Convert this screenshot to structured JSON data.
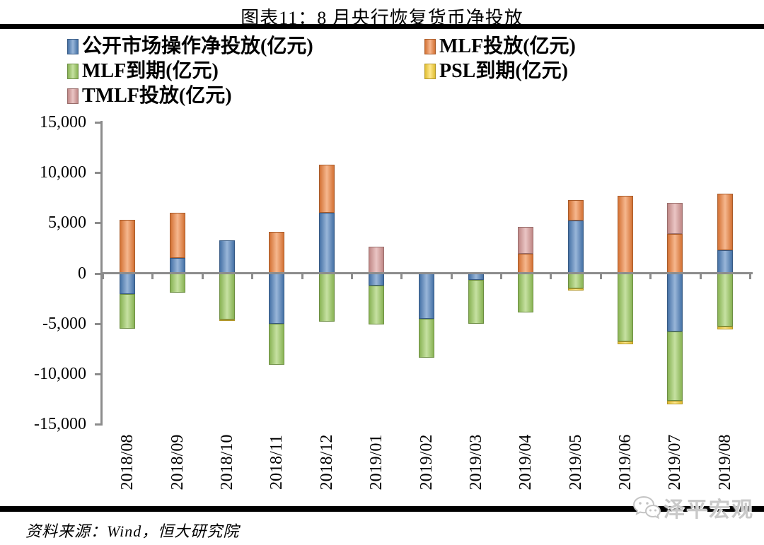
{
  "title": "图表11：8 月央行恢复货币净投放",
  "source": "资料来源：Wind，恒大研究院",
  "watermark": "泽平宏观",
  "colors": {
    "omo_blue": "#4F81BD",
    "mlf_inject_orange": "#F0823C",
    "mlf_mature_green": "#9CCB5F",
    "psl_mature_yellow": "#FFD83A",
    "tmlf_inject_pink": "#DA9B99",
    "axis_gray": "#8C8C8C",
    "rule_black": "#000000",
    "watermark_gray": "#C9C9C9"
  },
  "legend": [
    {
      "label": "公开市场操作净投放(亿元)",
      "color": "#4F81BD"
    },
    {
      "label": "MLF投放(亿元)",
      "color": "#F0823C"
    },
    {
      "label": "MLF到期(亿元)",
      "color": "#9CCB5F"
    },
    {
      "label": "PSL到期(亿元)",
      "color": "#FFD83A"
    },
    {
      "label": "TMLF投放(亿元)",
      "color": "#DA9B99"
    }
  ],
  "chart_data": {
    "type": "bar",
    "stacked": true,
    "grid": false,
    "legend_position": "top-left",
    "title": "图表11：8 月央行恢复货币净投放",
    "xlabel": "",
    "ylabel": "亿元",
    "ylim": [
      -15000,
      15000
    ],
    "yticks": [
      {
        "label": "15,000",
        "value": 15000
      },
      {
        "label": "10,000",
        "value": 10000
      },
      {
        "label": "5,000",
        "value": 5000
      },
      {
        "label": "0",
        "value": 0
      },
      {
        "label": "-5,000",
        "value": -5000
      },
      {
        "label": "-10,000",
        "value": -10000
      },
      {
        "label": "-15,000",
        "value": -15000
      }
    ],
    "categories": [
      "2018/08",
      "2018/09",
      "2018/10",
      "2018/11",
      "2018/12",
      "2019/01",
      "2019/02",
      "2019/03",
      "2019/04",
      "2019/05",
      "2019/06",
      "2019/07",
      "2019/08"
    ],
    "series": [
      {
        "name": "公开市场操作净投放(亿元)",
        "color": "#4F81BD",
        "values": [
          -2100,
          1500,
          3300,
          -5000,
          6000,
          -1200,
          -4500,
          -700,
          0,
          5200,
          0,
          -5800,
          2300
        ]
      },
      {
        "name": "MLF投放(亿元)",
        "color": "#F0823C",
        "values": [
          5300,
          4500,
          0,
          4100,
          4800,
          0,
          0,
          0,
          1900,
          2100,
          7700,
          3900,
          5600
        ]
      },
      {
        "name": "MLF到期(亿元)",
        "color": "#9CCB5F",
        "values": [
          -3400,
          -1900,
          -4600,
          -4100,
          -4800,
          -3900,
          -3900,
          -4300,
          -3900,
          -1500,
          -6800,
          -6900,
          -5300
        ]
      },
      {
        "name": "PSL到期(亿元)",
        "color": "#FFD83A",
        "values": [
          0,
          0,
          -100,
          0,
          0,
          0,
          0,
          0,
          0,
          -250,
          -250,
          -300,
          -300
        ]
      },
      {
        "name": "TMLF投放(亿元)",
        "color": "#DA9B99",
        "values": [
          0,
          0,
          0,
          0,
          0,
          2600,
          0,
          0,
          2700,
          0,
          0,
          3100,
          0
        ]
      }
    ]
  }
}
